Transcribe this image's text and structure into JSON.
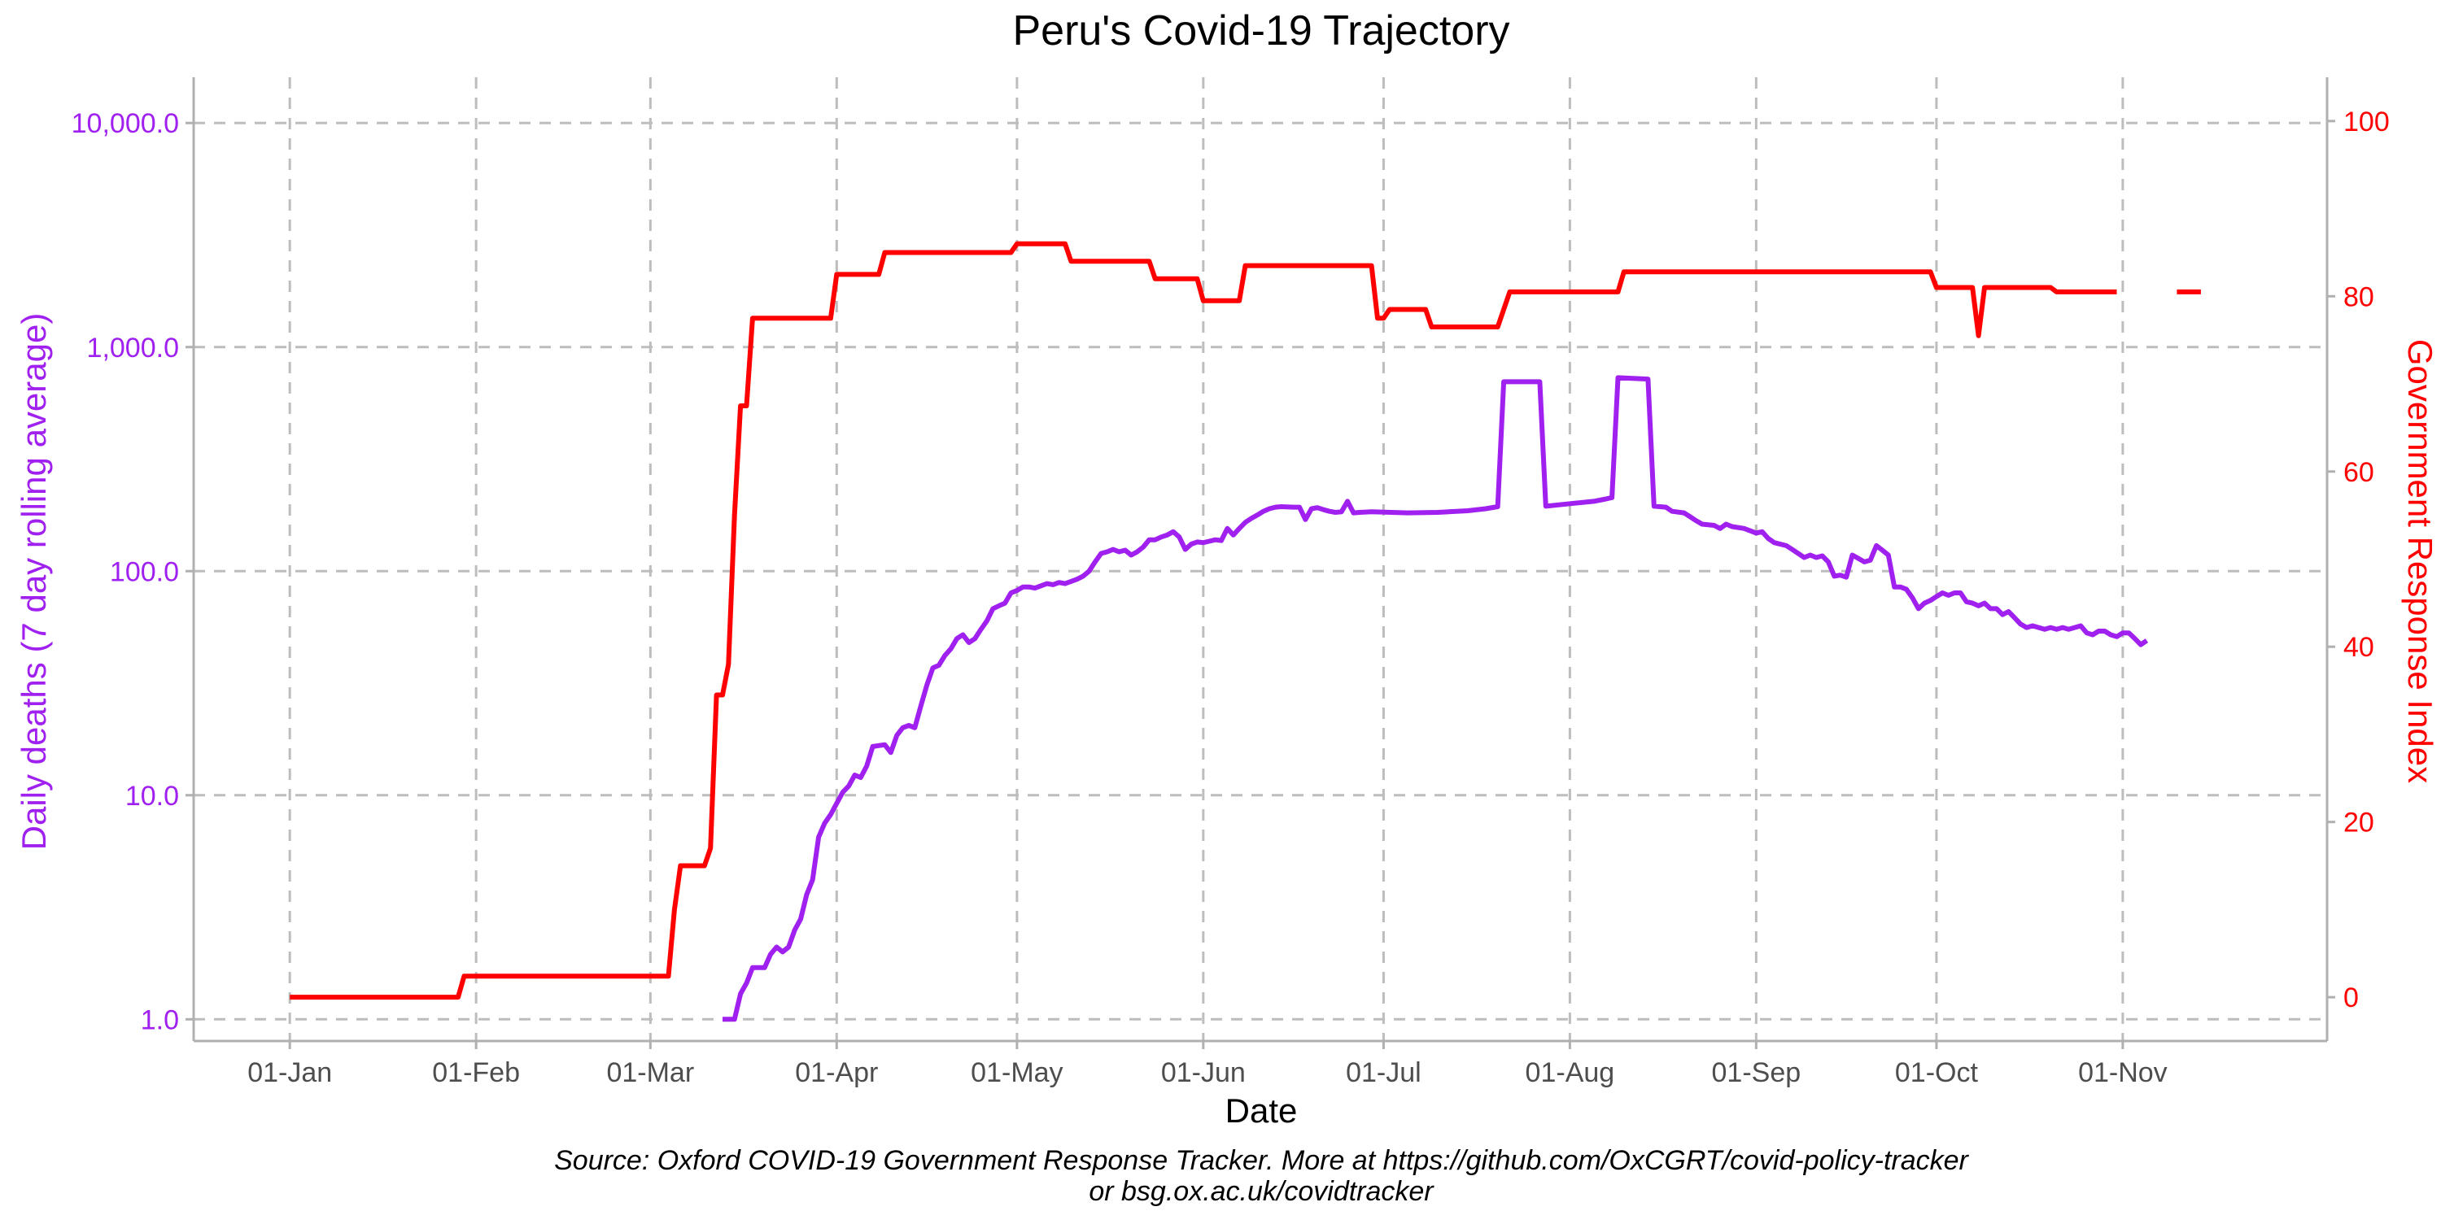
{
  "chart_data": {
    "type": "line",
    "title": "Peru's Covid-19 Trajectory",
    "xlabel": "Date",
    "ylabel_left": "Daily deaths (7 day rolling average)",
    "ylabel_right": "Government Response Index",
    "caption_line1": "Source: Oxford COVID-19 Government Response Tracker. More at https://github.com/OxCGRT/covid-policy-tracker",
    "caption_line2": "or bsg.ox.ac.uk/covidtracker",
    "x_ticks": [
      {
        "label": "01-Jan",
        "date": "2020-01-01"
      },
      {
        "label": "01-Feb",
        "date": "2020-02-01"
      },
      {
        "label": "01-Mar",
        "date": "2020-03-01"
      },
      {
        "label": "01-Apr",
        "date": "2020-04-01"
      },
      {
        "label": "01-May",
        "date": "2020-05-01"
      },
      {
        "label": "01-Jun",
        "date": "2020-06-01"
      },
      {
        "label": "01-Jul",
        "date": "2020-07-01"
      },
      {
        "label": "01-Aug",
        "date": "2020-08-01"
      },
      {
        "label": "01-Sep",
        "date": "2020-09-01"
      },
      {
        "label": "01-Oct",
        "date": "2020-10-01"
      },
      {
        "label": "01-Nov",
        "date": "2020-11-01"
      }
    ],
    "xlim": [
      "2019-12-16",
      "2020-12-05"
    ],
    "y_left": {
      "scale": "log10",
      "range": [
        0.8,
        16000
      ],
      "ticks": [
        1,
        10,
        100,
        1000,
        10000
      ],
      "tick_labels": [
        "1.0",
        "10.0",
        "100.0",
        "1,000.0",
        "10,000.0"
      ]
    },
    "y_right": {
      "scale": "linear",
      "range": [
        -5,
        105
      ],
      "ticks": [
        0,
        20,
        40,
        60,
        80,
        100
      ],
      "tick_labels": [
        "0",
        "20",
        "40",
        "60",
        "80",
        "100"
      ]
    },
    "grid": true,
    "colors": {
      "deaths": "#a020f0",
      "index": "#ff0000",
      "grid": "#bdbdbd",
      "axis": "#b0b0b0",
      "tick_text": "#4d4d4d"
    },
    "series": [
      {
        "axis": "left",
        "color": "#a020f0",
        "points": [
          [
            "2020-03-13",
            1
          ],
          [
            "2020-03-15",
            1
          ],
          [
            "2020-03-16",
            1.3
          ],
          [
            "2020-03-17",
            1.45
          ],
          [
            "2020-03-18",
            1.7
          ],
          [
            "2020-03-20",
            1.7
          ],
          [
            "2020-03-21",
            1.95
          ],
          [
            "2020-03-22",
            2.1
          ],
          [
            "2020-03-23",
            2.0
          ],
          [
            "2020-03-24",
            2.1
          ],
          [
            "2020-03-25",
            2.5
          ],
          [
            "2020-03-26",
            2.8
          ],
          [
            "2020-03-27",
            3.6
          ],
          [
            "2020-03-28",
            4.2
          ],
          [
            "2020-03-29",
            6.5
          ],
          [
            "2020-03-30",
            7.5
          ],
          [
            "2020-03-31",
            8.2
          ],
          [
            "2020-04-01",
            9.2
          ],
          [
            "2020-04-02",
            10.3
          ],
          [
            "2020-04-03",
            11
          ],
          [
            "2020-04-04",
            12.3
          ],
          [
            "2020-04-05",
            12
          ],
          [
            "2020-04-06",
            13.5
          ],
          [
            "2020-04-07",
            16.5
          ],
          [
            "2020-04-09",
            16.8
          ],
          [
            "2020-04-10",
            15.5
          ],
          [
            "2020-04-11",
            18.5
          ],
          [
            "2020-04-12",
            20
          ],
          [
            "2020-04-13",
            20.5
          ],
          [
            "2020-04-14",
            20
          ],
          [
            "2020-04-15",
            25
          ],
          [
            "2020-04-16",
            31
          ],
          [
            "2020-04-17",
            37
          ],
          [
            "2020-04-18",
            38
          ],
          [
            "2020-04-19",
            42
          ],
          [
            "2020-04-20",
            45
          ],
          [
            "2020-04-21",
            50
          ],
          [
            "2020-04-22",
            52
          ],
          [
            "2020-04-23",
            48
          ],
          [
            "2020-04-24",
            50
          ],
          [
            "2020-04-25",
            55
          ],
          [
            "2020-04-26",
            60
          ],
          [
            "2020-04-27",
            68
          ],
          [
            "2020-04-28",
            70
          ],
          [
            "2020-04-29",
            72
          ],
          [
            "2020-04-30",
            80
          ],
          [
            "2020-05-01",
            82
          ],
          [
            "2020-05-02",
            85
          ],
          [
            "2020-05-03",
            85
          ],
          [
            "2020-05-04",
            84
          ],
          [
            "2020-05-05",
            86
          ],
          [
            "2020-05-06",
            88
          ],
          [
            "2020-05-07",
            87
          ],
          [
            "2020-05-08",
            89
          ],
          [
            "2020-05-09",
            88
          ],
          [
            "2020-05-10",
            90
          ],
          [
            "2020-05-11",
            92
          ],
          [
            "2020-05-12",
            95
          ],
          [
            "2020-05-13",
            100
          ],
          [
            "2020-05-14",
            110
          ],
          [
            "2020-05-15",
            120
          ],
          [
            "2020-05-16",
            122
          ],
          [
            "2020-05-17",
            125
          ],
          [
            "2020-05-18",
            122
          ],
          [
            "2020-05-19",
            124
          ],
          [
            "2020-05-20",
            118
          ],
          [
            "2020-05-21",
            122
          ],
          [
            "2020-05-22",
            128
          ],
          [
            "2020-05-23",
            138
          ],
          [
            "2020-05-24",
            138
          ],
          [
            "2020-05-25",
            142
          ],
          [
            "2020-05-26",
            145
          ],
          [
            "2020-05-27",
            150
          ],
          [
            "2020-05-28",
            142
          ],
          [
            "2020-05-29",
            125
          ],
          [
            "2020-05-30",
            132
          ],
          [
            "2020-05-31",
            135
          ],
          [
            "2020-06-01",
            134
          ],
          [
            "2020-06-02",
            136
          ],
          [
            "2020-06-03",
            138
          ],
          [
            "2020-06-04",
            137
          ],
          [
            "2020-06-05",
            155
          ],
          [
            "2020-06-06",
            145
          ],
          [
            "2020-06-07",
            155
          ],
          [
            "2020-06-08",
            165
          ],
          [
            "2020-06-09",
            172
          ],
          [
            "2020-06-10",
            178
          ],
          [
            "2020-06-11",
            185
          ],
          [
            "2020-06-12",
            190
          ],
          [
            "2020-06-13",
            193
          ],
          [
            "2020-06-14",
            194
          ],
          [
            "2020-06-16",
            193
          ],
          [
            "2020-06-17",
            193
          ],
          [
            "2020-06-18",
            170
          ],
          [
            "2020-06-19",
            190
          ],
          [
            "2020-06-20",
            192
          ],
          [
            "2020-06-21",
            188
          ],
          [
            "2020-06-22",
            185
          ],
          [
            "2020-06-23",
            183
          ],
          [
            "2020-06-24",
            184
          ],
          [
            "2020-06-25",
            205
          ],
          [
            "2020-06-26",
            182
          ],
          [
            "2020-06-27",
            183
          ],
          [
            "2020-06-29",
            184
          ],
          [
            "2020-07-05",
            182
          ],
          [
            "2020-07-10",
            183
          ],
          [
            "2020-07-15",
            186
          ],
          [
            "2020-07-18",
            190
          ],
          [
            "2020-07-20",
            194
          ],
          [
            "2020-07-21",
            700
          ],
          [
            "2020-07-27",
            700
          ],
          [
            "2020-07-28",
            195
          ],
          [
            "2020-08-01",
            200
          ],
          [
            "2020-08-05",
            205
          ],
          [
            "2020-08-07",
            210
          ],
          [
            "2020-08-08",
            213
          ],
          [
            "2020-08-09",
            730
          ],
          [
            "2020-08-14",
            720
          ],
          [
            "2020-08-15",
            195
          ],
          [
            "2020-08-17",
            193
          ],
          [
            "2020-08-18",
            185
          ],
          [
            "2020-08-20",
            182
          ],
          [
            "2020-08-21",
            175
          ],
          [
            "2020-08-22",
            168
          ],
          [
            "2020-08-23",
            162
          ],
          [
            "2020-08-25",
            160
          ],
          [
            "2020-08-26",
            155
          ],
          [
            "2020-08-27",
            162
          ],
          [
            "2020-08-28",
            158
          ],
          [
            "2020-08-30",
            155
          ],
          [
            "2020-09-01",
            148
          ],
          [
            "2020-09-02",
            150
          ],
          [
            "2020-09-03",
            140
          ],
          [
            "2020-09-04",
            134
          ],
          [
            "2020-09-06",
            130
          ],
          [
            "2020-09-07",
            125
          ],
          [
            "2020-09-08",
            120
          ],
          [
            "2020-09-09",
            115
          ],
          [
            "2020-09-10",
            118
          ],
          [
            "2020-09-11",
            115
          ],
          [
            "2020-09-12",
            117
          ],
          [
            "2020-09-13",
            110
          ],
          [
            "2020-09-14",
            95
          ],
          [
            "2020-09-15",
            96
          ],
          [
            "2020-09-16",
            94
          ],
          [
            "2020-09-17",
            118
          ],
          [
            "2020-09-18",
            114
          ],
          [
            "2020-09-19",
            110
          ],
          [
            "2020-09-20",
            112
          ],
          [
            "2020-09-21",
            130
          ],
          [
            "2020-09-22",
            124
          ],
          [
            "2020-09-23",
            118
          ],
          [
            "2020-09-24",
            85
          ],
          [
            "2020-09-25",
            85
          ],
          [
            "2020-09-26",
            83
          ],
          [
            "2020-09-27",
            76
          ],
          [
            "2020-09-28",
            68
          ],
          [
            "2020-09-29",
            72
          ],
          [
            "2020-09-30",
            74
          ],
          [
            "2020-10-01",
            77
          ],
          [
            "2020-10-02",
            80
          ],
          [
            "2020-10-03",
            78
          ],
          [
            "2020-10-04",
            80
          ],
          [
            "2020-10-05",
            80
          ],
          [
            "2020-10-06",
            73
          ],
          [
            "2020-10-07",
            72
          ],
          [
            "2020-10-08",
            70
          ],
          [
            "2020-10-09",
            72
          ],
          [
            "2020-10-10",
            68
          ],
          [
            "2020-10-11",
            68
          ],
          [
            "2020-10-12",
            64
          ],
          [
            "2020-10-13",
            66
          ],
          [
            "2020-10-14",
            62
          ],
          [
            "2020-10-15",
            58
          ],
          [
            "2020-10-16",
            56
          ],
          [
            "2020-10-17",
            57
          ],
          [
            "2020-10-18",
            56
          ],
          [
            "2020-10-19",
            55
          ],
          [
            "2020-10-20",
            56
          ],
          [
            "2020-10-21",
            55
          ],
          [
            "2020-10-22",
            56
          ],
          [
            "2020-10-23",
            55
          ],
          [
            "2020-10-24",
            56
          ],
          [
            "2020-10-25",
            57
          ],
          [
            "2020-10-26",
            53
          ],
          [
            "2020-10-27",
            52
          ],
          [
            "2020-10-28",
            54
          ],
          [
            "2020-10-29",
            54
          ],
          [
            "2020-10-30",
            52
          ],
          [
            "2020-10-31",
            51
          ],
          [
            "2020-11-01",
            53
          ],
          [
            "2020-11-02",
            53
          ],
          [
            "2020-11-03",
            50
          ],
          [
            "2020-11-04",
            47
          ],
          [
            "2020-11-05",
            49
          ]
        ]
      },
      {
        "axis": "right",
        "color": "#ff0000",
        "points": [
          [
            "2020-01-01",
            0
          ],
          [
            "2020-01-29",
            0
          ],
          [
            "2020-01-30",
            2.4
          ],
          [
            "2020-03-04",
            2.4
          ],
          [
            "2020-03-05",
            10
          ],
          [
            "2020-03-06",
            15
          ],
          [
            "2020-03-10",
            15
          ],
          [
            "2020-03-11",
            17
          ],
          [
            "2020-03-12",
            34.5
          ],
          [
            "2020-03-13",
            34.5
          ],
          [
            "2020-03-14",
            38
          ],
          [
            "2020-03-15",
            55
          ],
          [
            "2020-03-16",
            67.5
          ],
          [
            "2020-03-17",
            67.5
          ],
          [
            "2020-03-18",
            77.5
          ],
          [
            "2020-03-31",
            77.5
          ],
          [
            "2020-04-01",
            82.5
          ],
          [
            "2020-04-08",
            82.5
          ],
          [
            "2020-04-09",
            85
          ],
          [
            "2020-04-30",
            85
          ],
          [
            "2020-05-01",
            86
          ],
          [
            "2020-05-09",
            86
          ],
          [
            "2020-05-10",
            84
          ],
          [
            "2020-05-23",
            84
          ],
          [
            "2020-05-24",
            82
          ],
          [
            "2020-05-31",
            82
          ],
          [
            "2020-06-01",
            79.5
          ],
          [
            "2020-06-07",
            79.5
          ],
          [
            "2020-06-08",
            83.5
          ],
          [
            "2020-06-29",
            83.5
          ],
          [
            "2020-06-30",
            77.5
          ],
          [
            "2020-07-01",
            77.5
          ],
          [
            "2020-07-02",
            78.5
          ],
          [
            "2020-07-08",
            78.5
          ],
          [
            "2020-07-09",
            76.5
          ],
          [
            "2020-07-20",
            76.5
          ],
          [
            "2020-07-22",
            80.5
          ],
          [
            "2020-08-09",
            80.5
          ],
          [
            "2020-08-10",
            82.8
          ],
          [
            "2020-09-30",
            82.8
          ],
          [
            "2020-10-01",
            81
          ],
          [
            "2020-10-07",
            81
          ],
          [
            "2020-10-08",
            75.5
          ],
          [
            "2020-10-09",
            81
          ],
          [
            "2020-10-20",
            81
          ],
          [
            "2020-10-21",
            80.5
          ],
          [
            "2020-10-31",
            80.5
          ],
          null,
          [
            "2020-11-10",
            80.5
          ],
          [
            "2020-11-14",
            80.5
          ]
        ]
      }
    ]
  }
}
